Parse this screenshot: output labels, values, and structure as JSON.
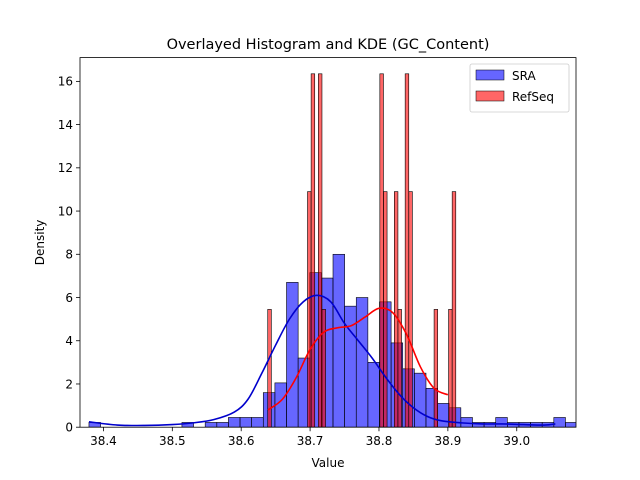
{
  "chart_data": {
    "type": "histogram",
    "title": "Overlayed Histogram and KDE (GC_Content)",
    "xlabel": "Value",
    "ylabel": "Density",
    "xlim": [
      38.366,
      39.086
    ],
    "ylim": [
      0,
      17.1
    ],
    "x_ticks": [
      38.4,
      38.5,
      38.6,
      38.7,
      38.8,
      38.9,
      39.0
    ],
    "x_tick_labels": [
      "38.4",
      "38.5",
      "38.6",
      "38.7",
      "38.8",
      "38.9",
      "39.0"
    ],
    "y_ticks": [
      0,
      2,
      4,
      6,
      8,
      10,
      12,
      14,
      16
    ],
    "y_tick_labels": [
      "0",
      "2",
      "4",
      "6",
      "8",
      "10",
      "12",
      "14",
      "16"
    ],
    "legend": {
      "position": "top-right"
    },
    "series": [
      {
        "name": "SRA",
        "color": "#0000ff",
        "line_color": "#0000cc",
        "opacity": 0.6,
        "bin_start": 38.379,
        "bin_width": 0.01687,
        "densities": [
          0.22,
          0,
          0,
          0,
          0,
          0,
          0,
          0,
          0.22,
          0,
          0.22,
          0.22,
          0.45,
          0.45,
          0.45,
          1.6,
          2.05,
          6.7,
          3.2,
          7.15,
          6.9,
          8.0,
          5.6,
          6.0,
          3.0,
          5.8,
          3.9,
          2.7,
          2.5,
          1.8,
          1.1,
          0.9,
          0.45,
          0.22,
          0.22,
          0.45,
          0.22,
          0.22,
          0.22,
          0.22,
          0.45,
          0.22,
          0,
          0,
          0,
          0.45
        ]
      },
      {
        "name": "RefSeq",
        "color": "#ff0000",
        "line_color": "#ff0000",
        "opacity": 0.6,
        "bin_start": 38.6385,
        "bin_width": 0.00525,
        "densities": [
          5.45,
          0,
          0,
          0,
          0,
          0,
          0,
          0,
          0,
          0,
          0,
          10.9,
          16.35,
          0,
          16.35,
          5.45,
          0,
          0,
          0,
          0,
          0,
          0,
          0,
          0,
          0,
          0,
          0,
          0,
          0,
          0,
          0,
          16.35,
          10.9,
          0,
          0,
          10.9,
          5.45,
          0,
          16.35,
          10.9,
          0,
          0,
          0,
          0,
          0,
          0,
          5.45,
          0,
          0,
          0,
          5.45,
          10.9
        ]
      }
    ],
    "kde": [
      {
        "series": "SRA",
        "x": [
          38.379,
          38.42,
          38.46,
          38.5,
          38.53,
          38.56,
          38.59,
          38.61,
          38.63,
          38.65,
          38.67,
          38.69,
          38.71,
          38.73,
          38.75,
          38.77,
          38.79,
          38.81,
          38.83,
          38.85,
          38.87,
          38.89,
          38.92,
          38.95,
          38.98,
          39.01,
          39.04,
          39.056
        ],
        "y": [
          0.25,
          0.1,
          0.08,
          0.12,
          0.2,
          0.35,
          0.7,
          1.3,
          2.5,
          3.8,
          5.0,
          5.8,
          6.1,
          5.8,
          4.8,
          4.0,
          3.2,
          2.3,
          1.5,
          0.9,
          0.5,
          0.3,
          0.2,
          0.15,
          0.15,
          0.12,
          0.1,
          0.15
        ]
      },
      {
        "series": "RefSeq",
        "x": [
          38.639,
          38.66,
          38.68,
          38.7,
          38.72,
          38.74,
          38.76,
          38.78,
          38.8,
          38.82,
          38.84,
          38.86,
          38.88,
          38.9
        ],
        "y": [
          0.8,
          1.3,
          2.3,
          3.6,
          4.4,
          4.6,
          4.7,
          5.1,
          5.5,
          5.3,
          4.3,
          2.8,
          1.8,
          1.5
        ]
      }
    ]
  }
}
